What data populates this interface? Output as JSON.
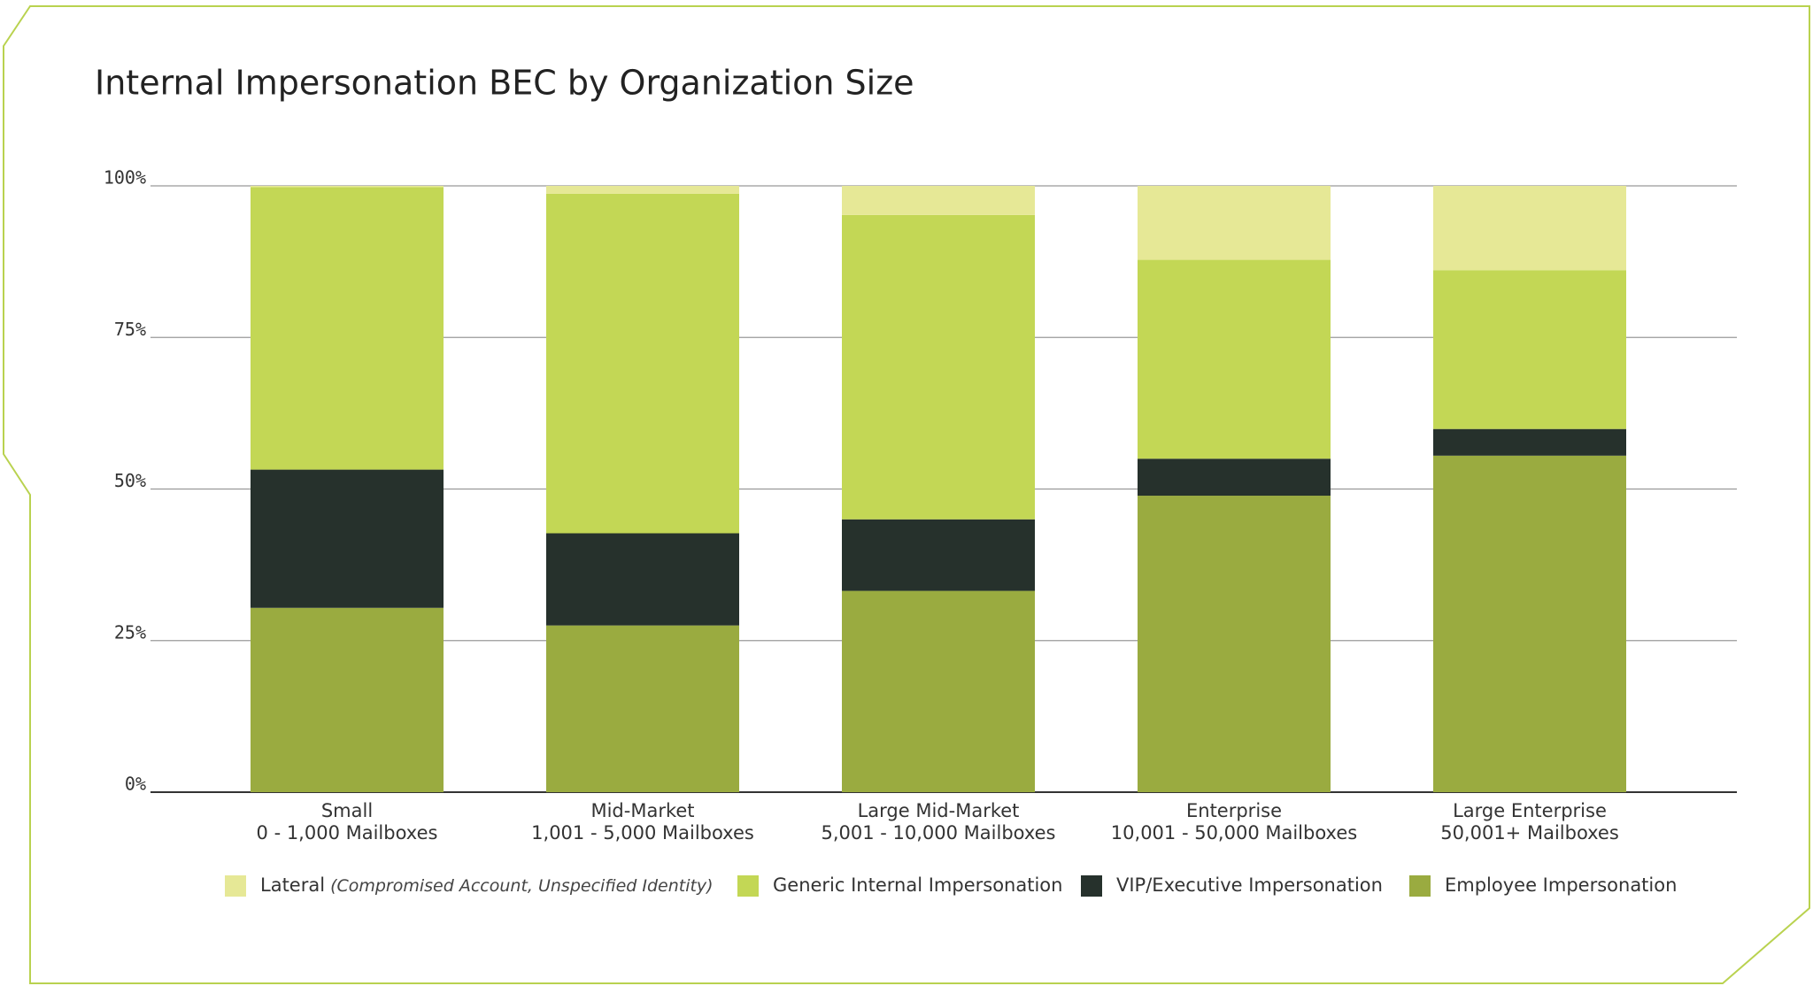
{
  "chart_data": {
    "type": "stacked-bar",
    "title": "Internal Impersonation BEC by Organization Size",
    "categories": [
      "Small",
      "Mid-Market",
      "Large Mid-Market",
      "Enterprise",
      "Large Enterprise"
    ],
    "category_details": [
      "0 - 1,000 Mailboxes",
      "1,001 - 5,000 Mailboxes",
      "5,001 - 10,000 Mailboxes",
      "10,001 - 50,000 Mailboxes",
      "50,001+ Mailboxes"
    ],
    "series": [
      {
        "name": "Lateral",
        "name_note": "(Compromised Account, Unspecified Identity)",
        "color": "#e6e896",
        "values": [
          0.2,
          1.3,
          4.8,
          12.2,
          13.9
        ]
      },
      {
        "name": "Generic Internal Impersonation",
        "color": "#c3d755",
        "values": [
          46.6,
          56.0,
          50.2,
          32.8,
          26.2
        ]
      },
      {
        "name": "VIP/Executive Impersonation",
        "color": "#26312c",
        "values": [
          22.8,
          15.2,
          11.8,
          6.1,
          4.4
        ]
      },
      {
        "name": "Employee Impersonation",
        "color": "#9aab40",
        "values": [
          30.4,
          27.5,
          33.2,
          48.9,
          55.5
        ]
      }
    ],
    "ylim": [
      0,
      100
    ],
    "yticks": [
      {
        "value": 0,
        "label": "0%"
      },
      {
        "value": 25,
        "label": "25%"
      },
      {
        "value": 50,
        "label": "50%"
      },
      {
        "value": 75,
        "label": "75%"
      },
      {
        "value": 100,
        "label": "100%"
      }
    ],
    "grid": true
  }
}
